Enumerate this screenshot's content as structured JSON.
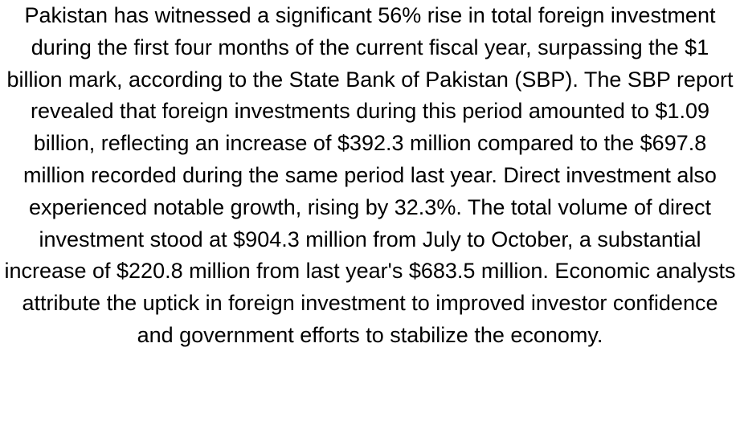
{
  "article": {
    "body": "Pakistan has witnessed a significant 56% rise in total foreign investment during the first four months of the current fiscal year, surpassing the $1 billion mark, according to the State Bank of Pakistan (SBP). The SBP report revealed that foreign investments during this period amounted to $1.09 billion, reflecting an increase of $392.3 million compared to the $697.8 million recorded during the same period last year. Direct investment also experienced notable growth, rising by 32.3%. The total volume of direct investment stood at $904.3 million from July to October, a substantial increase of $220.8 million from last year's $683.5 million. Economic analysts attribute the uptick in foreign investment to improved investor confidence and government efforts to stabilize the economy."
  }
}
